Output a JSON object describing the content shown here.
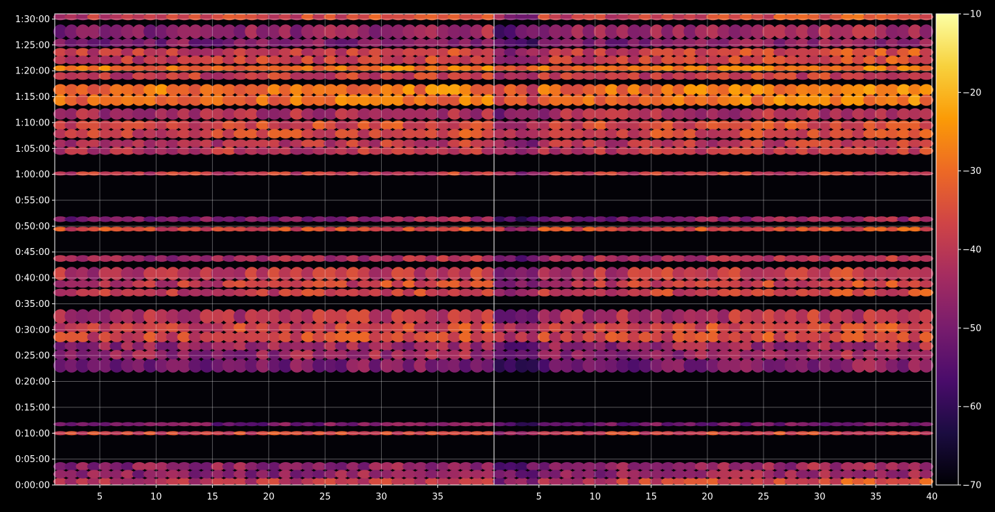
{
  "chart_data": {
    "type": "heatmap",
    "title": "",
    "xlabel": "",
    "ylabel": "",
    "grid": true,
    "panels": [
      {
        "name": "",
        "xlim": [
          1,
          40
        ],
        "xticks": [
          "5",
          "10",
          "15",
          "20",
          "25",
          "30",
          "35"
        ],
        "xtick_values": [
          5,
          10,
          15,
          20,
          25,
          30,
          35
        ]
      },
      {
        "name": "",
        "xlim": [
          1,
          40
        ],
        "xticks": [
          "5",
          "10",
          "15",
          "20",
          "25",
          "30",
          "35",
          "40"
        ],
        "xtick_values": [
          5,
          10,
          15,
          20,
          25,
          30,
          35,
          40
        ]
      }
    ],
    "ylim_seconds": [
      0,
      5460
    ],
    "yticks": [
      "0:00:00",
      "0:05:00",
      "0:10:00",
      "0:15:00",
      "0:20:00",
      "0:25:00",
      "0:30:00",
      "0:35:00",
      "0:40:00",
      "0:45:00",
      "0:50:00",
      "0:55:00",
      "1:00:00",
      "1:05:00",
      "1:10:00",
      "1:15:00",
      "1:20:00",
      "1:25:00",
      "1:30:00"
    ],
    "ytick_values": [
      0,
      300,
      600,
      900,
      1200,
      1500,
      1800,
      2100,
      2400,
      2700,
      3000,
      3300,
      3600,
      3900,
      4200,
      4500,
      4800,
      5100,
      5400
    ],
    "colorbar": {
      "colormap": "inferno",
      "range": [
        -70,
        -10
      ],
      "ticks": [
        "−70",
        "−60",
        "−50",
        "−40",
        "−30",
        "−20",
        "−10"
      ],
      "tick_values": [
        -70,
        -60,
        -50,
        -40,
        -30,
        -20,
        -10
      ],
      "colors": [
        "#000004",
        "#1b0c41",
        "#4a0c6b",
        "#781c6d",
        "#a52c60",
        "#cf4446",
        "#ed6925",
        "#fb9b06",
        "#f7d13d",
        "#fcffa4"
      ]
    },
    "bands": [
      {
        "start": 0,
        "end": 80,
        "level": -42,
        "left_trend": 4,
        "right_trend": 10
      },
      {
        "start": 80,
        "end": 260,
        "level": -48,
        "left_trend": 3,
        "right_trend": 5
      },
      {
        "start": 580,
        "end": 620,
        "level": -38,
        "left_trend": 2,
        "right_trend": 2
      },
      {
        "start": 690,
        "end": 720,
        "level": -52,
        "left_trend": 4,
        "right_trend": 4
      },
      {
        "start": 1310,
        "end": 1460,
        "level": -52,
        "left_trend": 4,
        "right_trend": 6
      },
      {
        "start": 1460,
        "end": 1660,
        "level": -47,
        "left_trend": 3,
        "right_trend": 4
      },
      {
        "start": 1660,
        "end": 1880,
        "level": -38,
        "left_trend": 3,
        "right_trend": 4
      },
      {
        "start": 1880,
        "end": 2030,
        "level": -44,
        "left_trend": 5,
        "right_trend": 6
      },
      {
        "start": 2190,
        "end": 2270,
        "level": -40,
        "left_trend": 4,
        "right_trend": 5
      },
      {
        "start": 2290,
        "end": 2370,
        "level": -42,
        "left_trend": 7,
        "right_trend": 8
      },
      {
        "start": 2380,
        "end": 2520,
        "level": -42,
        "left_trend": 4,
        "right_trend": 6
      },
      {
        "start": 2590,
        "end": 2660,
        "level": -46,
        "left_trend": 5,
        "right_trend": 7
      },
      {
        "start": 2940,
        "end": 2990,
        "level": -36,
        "left_trend": 2,
        "right_trend": 2
      },
      {
        "start": 3050,
        "end": 3110,
        "level": -52,
        "left_trend": 8,
        "right_trend": 9
      },
      {
        "start": 3590,
        "end": 3630,
        "level": -40,
        "left_trend": 2,
        "right_trend": 3
      },
      {
        "start": 3830,
        "end": 4000,
        "level": -42,
        "left_trend": 3,
        "right_trend": 4
      },
      {
        "start": 4020,
        "end": 4220,
        "level": -38,
        "left_trend": 3,
        "right_trend": 4
      },
      {
        "start": 4240,
        "end": 4360,
        "level": -44,
        "left_trend": 2,
        "right_trend": 3
      },
      {
        "start": 4400,
        "end": 4640,
        "level": -30,
        "left_trend": 2,
        "right_trend": 3
      },
      {
        "start": 4700,
        "end": 4780,
        "level": -40,
        "left_trend": 2,
        "right_trend": 3
      },
      {
        "start": 4800,
        "end": 4860,
        "level": -30,
        "left_trend": 2,
        "right_trend": 2
      },
      {
        "start": 4880,
        "end": 5060,
        "level": -40,
        "left_trend": 4,
        "right_trend": 6
      },
      {
        "start": 5080,
        "end": 5170,
        "level": -50,
        "left_trend": 3,
        "right_trend": 5
      },
      {
        "start": 5180,
        "end": 5330,
        "level": -48,
        "left_trend": 4,
        "right_trend": 6
      },
      {
        "start": 5390,
        "end": 5460,
        "level": -40,
        "left_trend": 6,
        "right_trend": 8
      }
    ]
  }
}
